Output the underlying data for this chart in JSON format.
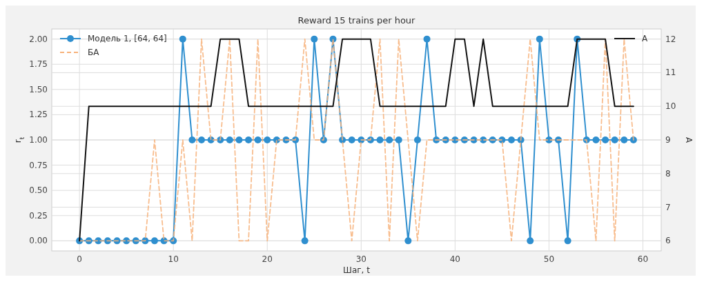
{
  "chart_data": {
    "type": "line",
    "title": "Reward 15 trains per hour",
    "xlabel": "Шаг, t",
    "ylabel": "r$_{t}$",
    "y2label": "A",
    "x": [
      0,
      1,
      2,
      3,
      4,
      5,
      6,
      7,
      8,
      9,
      10,
      11,
      12,
      13,
      14,
      15,
      16,
      17,
      18,
      19,
      20,
      21,
      22,
      23,
      24,
      25,
      26,
      27,
      28,
      29,
      30,
      31,
      32,
      33,
      34,
      35,
      36,
      37,
      38,
      39,
      40,
      41,
      42,
      43,
      44,
      45,
      46,
      47,
      48,
      49,
      50,
      51,
      52,
      53,
      54,
      55,
      56,
      57,
      58,
      59
    ],
    "series": [
      {
        "name": "Модель 1, [64, 64]",
        "color": "#2f8fcf",
        "marker": "circle",
        "line_style": "solid",
        "values": [
          0,
          0,
          0,
          0,
          0,
          0,
          0,
          0,
          0,
          0,
          0,
          2,
          1,
          1,
          1,
          1,
          1,
          1,
          1,
          1,
          1,
          1,
          1,
          1,
          0,
          2,
          1,
          2,
          1,
          1,
          1,
          1,
          1,
          1,
          1,
          0,
          1,
          2,
          1,
          1,
          1,
          1,
          1,
          1,
          1,
          1,
          1,
          1,
          0,
          2,
          1,
          1,
          0,
          2,
          1,
          1,
          1,
          1,
          1,
          1
        ]
      },
      {
        "name": "БА",
        "color": "#f7b27a",
        "marker": "none",
        "line_style": "dashed",
        "values": [
          0,
          0,
          0,
          0,
          0,
          0,
          0,
          0,
          1,
          0,
          0,
          1,
          0,
          2,
          1,
          1,
          2,
          0,
          0,
          2,
          0,
          1,
          1,
          1,
          2,
          1,
          1,
          2,
          1,
          0,
          1,
          1,
          2,
          0,
          2,
          1,
          0,
          1,
          1,
          1,
          1,
          1,
          1,
          1,
          1,
          1,
          0,
          1,
          2,
          1,
          1,
          1,
          1,
          1,
          1,
          0,
          2,
          0,
          2,
          1
        ]
      },
      {
        "name": "A",
        "color": "#111111",
        "marker": "none",
        "line_style": "solid",
        "axis": "y2",
        "values": [
          6,
          10,
          10,
          10,
          10,
          10,
          10,
          10,
          10,
          10,
          10,
          10,
          10,
          10,
          10,
          12,
          12,
          12,
          10,
          10,
          10,
          10,
          10,
          10,
          10,
          10,
          10,
          10,
          12,
          12,
          12,
          12,
          10,
          10,
          10,
          10,
          10,
          10,
          10,
          10,
          12,
          12,
          10,
          12,
          10,
          10,
          10,
          10,
          10,
          10,
          10,
          10,
          10,
          12,
          12,
          12,
          12,
          10,
          10,
          10
        ]
      }
    ],
    "xlim": [
      -2.95,
      61.95
    ],
    "xticks": [
      0,
      10,
      20,
      30,
      40,
      50,
      60
    ],
    "ylim": [
      -0.1,
      2.1
    ],
    "yticks": [
      {
        "value": 0,
        "label": "0.00"
      },
      {
        "value": 0.25,
        "label": "0.25"
      },
      {
        "value": 0.5,
        "label": "0.50"
      },
      {
        "value": 0.75,
        "label": "0.75"
      },
      {
        "value": 1,
        "label": "1.00"
      },
      {
        "value": 1.25,
        "label": "1.25"
      },
      {
        "value": 1.5,
        "label": "1.50"
      },
      {
        "value": 1.75,
        "label": "1.75"
      },
      {
        "value": 2,
        "label": "2.00"
      }
    ],
    "y2lim": [
      5.7,
      12.3
    ],
    "y2ticks": [
      6,
      7,
      8,
      9,
      10,
      11,
      12
    ],
    "grid": true,
    "legend": "top left"
  }
}
